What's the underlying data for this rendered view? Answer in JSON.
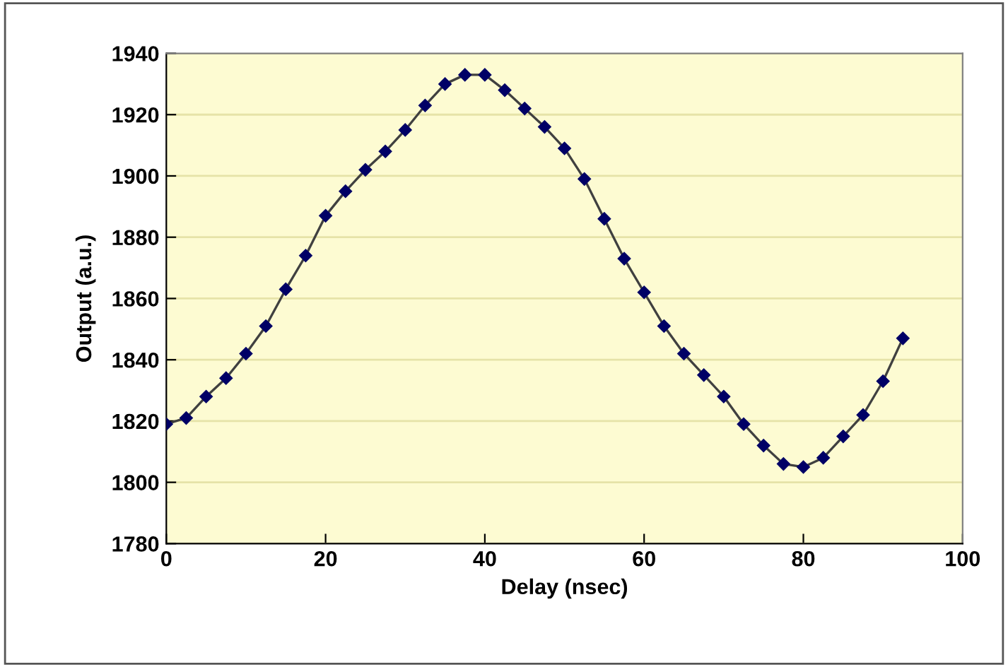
{
  "chart_data": {
    "type": "line",
    "xlabel": "Delay (nsec)",
    "ylabel": "Output (a.u.)",
    "x": [
      0,
      2.5,
      5,
      7.5,
      10,
      12.5,
      15,
      17.5,
      20,
      22.5,
      25,
      27.5,
      30,
      32.5,
      35,
      37.5,
      40,
      42.5,
      45,
      47.5,
      50,
      52.5,
      55,
      57.5,
      60,
      62.5,
      65,
      67.5,
      70,
      72.5,
      75,
      77.5,
      80,
      82.5,
      85,
      87.5,
      90,
      92.5
    ],
    "series": [
      {
        "color": "#000066",
        "values": [
          1819,
          1821,
          1828,
          1834,
          1842,
          1851,
          1863,
          1874,
          1887,
          1895,
          1902,
          1908,
          1915,
          1923,
          1930,
          1933,
          1933,
          1928,
          1922,
          1916,
          1909,
          1899,
          1886,
          1873,
          1862,
          1851,
          1842,
          1835,
          1828,
          1819,
          1812,
          1806,
          1805,
          1808,
          1815,
          1822,
          1833,
          1847
        ]
      }
    ],
    "xlim": [
      0,
      100
    ],
    "xticks": [
      0,
      20,
      40,
      60,
      80,
      100
    ],
    "ylim": [
      1780,
      1940
    ],
    "yticks": [
      1780,
      1800,
      1820,
      1840,
      1860,
      1880,
      1900,
      1920,
      1940
    ],
    "grid": "y",
    "marker": "diamond",
    "line_style": "solid"
  }
}
